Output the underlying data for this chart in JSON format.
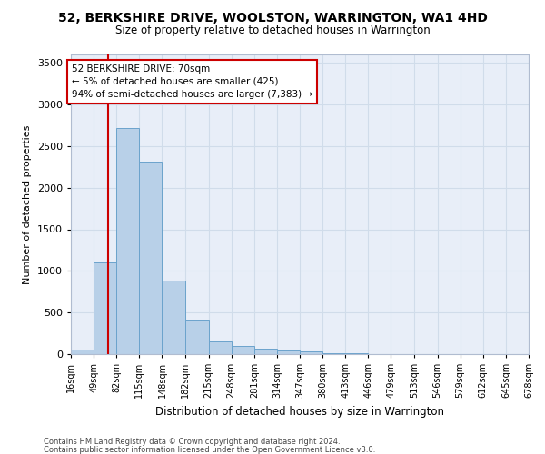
{
  "title": "52, BERKSHIRE DRIVE, WOOLSTON, WARRINGTON, WA1 4HD",
  "subtitle": "Size of property relative to detached houses in Warrington",
  "xlabel": "Distribution of detached houses by size in Warrington",
  "ylabel": "Number of detached properties",
  "footnote1": "Contains HM Land Registry data © Crown copyright and database right 2024.",
  "footnote2": "Contains public sector information licensed under the Open Government Licence v3.0.",
  "annotation_title": "52 BERKSHIRE DRIVE: 70sqm",
  "annotation_line1": "← 5% of detached houses are smaller (425)",
  "annotation_line2": "94% of semi-detached houses are larger (7,383) →",
  "property_size": 70,
  "bin_edges": [
    16,
    49,
    82,
    115,
    148,
    182,
    215,
    248,
    281,
    314,
    347,
    380,
    413,
    446,
    479,
    513,
    546,
    579,
    612,
    645,
    678
  ],
  "bar_heights": [
    60,
    1100,
    2720,
    2310,
    880,
    420,
    155,
    95,
    65,
    45,
    30,
    15,
    8,
    4,
    3,
    2,
    1,
    1,
    0,
    0
  ],
  "bar_color": "#b8d0e8",
  "bar_edge_color": "#6ba3cc",
  "line_color": "#cc0000",
  "annotation_box_color": "#ffffff",
  "annotation_box_edge": "#cc0000",
  "grid_color": "#d0dcea",
  "background_color": "#e8eef8",
  "ylim": [
    0,
    3600
  ],
  "yticks": [
    0,
    500,
    1000,
    1500,
    2000,
    2500,
    3000,
    3500
  ]
}
